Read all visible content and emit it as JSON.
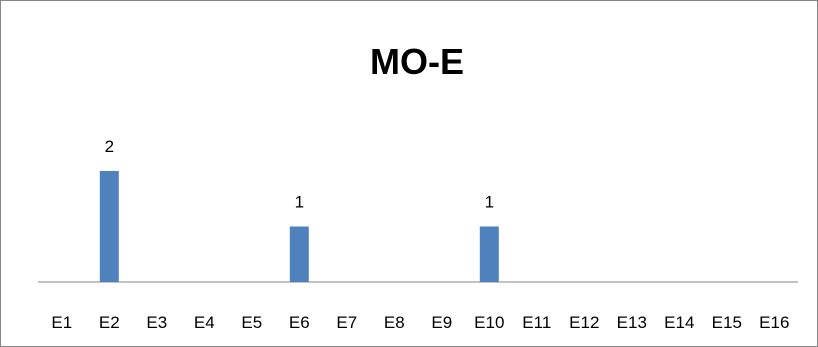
{
  "chart_data": {
    "type": "bar",
    "title": "MO-E",
    "categories": [
      "E1",
      "E2",
      "E3",
      "E4",
      "E5",
      "E6",
      "E7",
      "E8",
      "E9",
      "E10",
      "E11",
      "E12",
      "E13",
      "E14",
      "E15",
      "E16"
    ],
    "values": [
      0,
      2,
      0,
      0,
      0,
      1,
      0,
      0,
      0,
      1,
      0,
      0,
      0,
      0,
      0,
      0
    ],
    "data_labels": [
      "",
      "2",
      "",
      "",
      "",
      "1",
      "",
      "",
      "",
      "1",
      "",
      "",
      "",
      "",
      "",
      ""
    ],
    "xlabel": "",
    "ylabel": "",
    "ylim": [
      0,
      2.0
    ],
    "grid": false,
    "legend": "none",
    "colors": {
      "bar": "#4F81BD",
      "axis": "#868686",
      "border": "#868686"
    }
  }
}
